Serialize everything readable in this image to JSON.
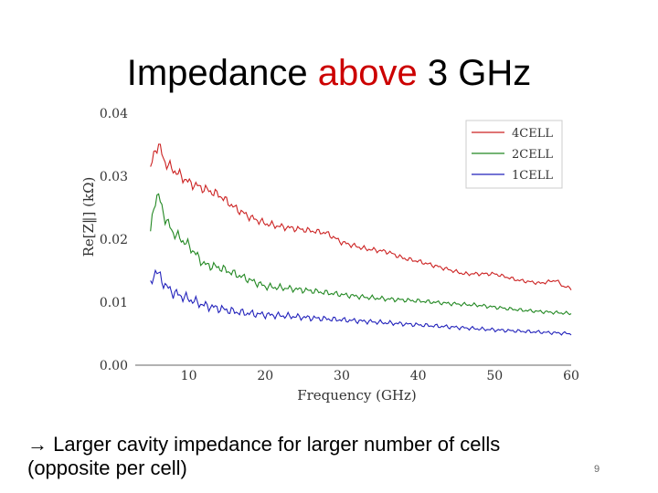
{
  "slide": {
    "title_part1": "Impedance",
    "title_accent": "above",
    "title_part2": "3 GHz",
    "bullet_arrow": "→",
    "bullet_line1": "Larger cavity impedance for larger number of cells",
    "bullet_line2": "(opposite per cell)",
    "page_number": "9"
  },
  "colors": {
    "accent": "#cc0000"
  },
  "chart_data": {
    "type": "line",
    "title": "",
    "xlabel": "Frequency (GHz)",
    "ylabel": "Re[Z‖] (kΩ)",
    "xlim": [
      3,
      60
    ],
    "ylim": [
      0.0,
      0.04
    ],
    "xticks": [
      10,
      20,
      30,
      40,
      50,
      60
    ],
    "yticks": [
      0.0,
      0.01,
      0.02,
      0.03,
      0.04
    ],
    "ytick_labels": [
      "0.00",
      "0.01",
      "0.02",
      "0.03",
      "0.04"
    ],
    "legend_position": "top-right",
    "grid": false,
    "series": [
      {
        "name": "4CELL",
        "color": "#cc2222",
        "x": [
          5,
          5.5,
          6,
          7,
          8,
          9,
          10,
          12,
          14,
          16,
          18,
          20,
          22,
          25,
          28,
          30,
          33,
          36,
          38,
          40,
          43,
          46,
          50,
          53,
          56,
          58,
          59,
          60
        ],
        "values": [
          0.031,
          0.034,
          0.035,
          0.032,
          0.031,
          0.03,
          0.029,
          0.028,
          0.027,
          0.025,
          0.0235,
          0.0225,
          0.022,
          0.0215,
          0.021,
          0.0195,
          0.0185,
          0.018,
          0.017,
          0.0165,
          0.0155,
          0.0145,
          0.0145,
          0.0135,
          0.013,
          0.0135,
          0.0125,
          0.0122
        ]
      },
      {
        "name": "2CELL",
        "color": "#228822",
        "x": [
          5,
          5.5,
          6,
          7,
          8,
          10,
          12,
          14,
          16,
          18,
          20,
          23,
          26,
          30,
          33,
          36,
          40,
          44,
          48,
          50,
          53,
          56,
          60
        ],
        "values": [
          0.021,
          0.026,
          0.027,
          0.023,
          0.021,
          0.019,
          0.016,
          0.0155,
          0.0145,
          0.0135,
          0.0125,
          0.0122,
          0.0118,
          0.0112,
          0.0108,
          0.0105,
          0.0102,
          0.0098,
          0.0095,
          0.0092,
          0.0088,
          0.0085,
          0.0082
        ]
      },
      {
        "name": "1CELL",
        "color": "#2222bb",
        "x": [
          5,
          5.5,
          6,
          7,
          8,
          10,
          12,
          14,
          16,
          18,
          20,
          23,
          26,
          30,
          35,
          40,
          45,
          50,
          55,
          60
        ],
        "values": [
          0.0125,
          0.015,
          0.0145,
          0.0125,
          0.0115,
          0.0105,
          0.0095,
          0.009,
          0.0085,
          0.0082,
          0.008,
          0.0078,
          0.0075,
          0.0072,
          0.0068,
          0.0064,
          0.006,
          0.0056,
          0.0053,
          0.005
        ]
      }
    ]
  }
}
